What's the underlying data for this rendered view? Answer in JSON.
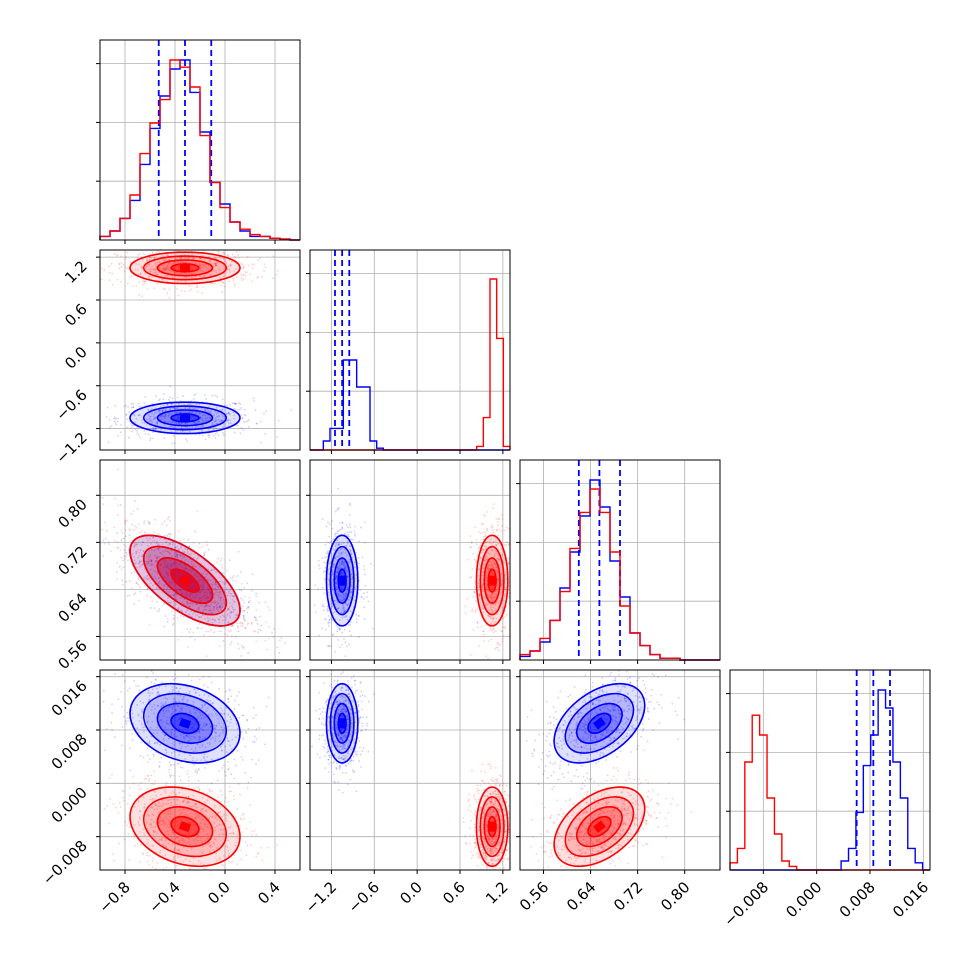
{
  "chart_data": {
    "type": "corner",
    "params": [
      {
        "range": [
          -1.0,
          0.6
        ],
        "ticks": [
          "-0.8",
          "-0.4",
          "0.0",
          "0.4"
        ],
        "tick_values": [
          -0.8,
          -0.4,
          0.0,
          0.4
        ]
      },
      {
        "range": [
          -1.5,
          1.3
        ],
        "ticks": [
          "-1.2",
          "-0.6",
          "0.0",
          "0.6",
          "1.2"
        ],
        "tick_values": [
          -1.2,
          -0.6,
          0.0,
          0.6,
          1.2
        ]
      },
      {
        "range": [
          0.52,
          0.86
        ],
        "ticks": [
          "0.56",
          "0.64",
          "0.72",
          "0.80"
        ],
        "tick_values": [
          0.56,
          0.64,
          0.72,
          0.8
        ]
      },
      {
        "range": [
          -0.013,
          0.017
        ],
        "ticks": [
          "-0.008",
          "0.000",
          "0.008",
          "0.016"
        ],
        "tick_values": [
          -0.008,
          0.0,
          0.008,
          0.016
        ]
      }
    ],
    "series": [
      {
        "color": "#0000ff",
        "mean": [
          -0.32,
          -1.05,
          0.655,
          0.009
        ],
        "std": [
          0.2,
          0.1,
          0.035,
          0.0027
        ],
        "quantiles": [
          [
            -0.53,
            -0.32,
            -0.11
          ],
          [
            -1.15,
            -1.05,
            -0.95
          ],
          [
            0.62,
            0.655,
            0.69
          ],
          [
            0.006,
            0.0085,
            0.011
          ]
        ],
        "hist": [
          [
            0.02,
            0.05,
            0.12,
            0.22,
            0.42,
            0.62,
            0.8,
            0.95,
            1.0,
            0.82,
            0.6,
            0.32,
            0.2,
            0.1,
            0.05,
            0.02,
            0.02,
            0.01,
            0.005,
            0.0
          ],
          [
            0.0,
            0.0,
            0.05,
            0.12,
            0.12,
            0.5,
            0.5,
            0.35,
            0.35,
            0.05,
            0.01,
            0.0,
            0.0,
            0.0,
            0.0,
            0.0,
            0.0,
            0.0,
            0.0,
            0.0,
            0.0,
            0.0,
            0.0,
            0.0,
            0.0,
            0.0,
            0.0,
            0.0,
            0.0,
            0.0
          ],
          [
            0.02,
            0.05,
            0.1,
            0.22,
            0.4,
            0.6,
            0.8,
            1.0,
            0.85,
            0.55,
            0.35,
            0.15,
            0.08,
            0.03,
            0.01,
            0.01,
            0.0,
            0.0,
            0.0,
            0.0
          ],
          [
            0.0,
            0.0,
            0.0,
            0.0,
            0.0,
            0.0,
            0.0,
            0.0,
            0.0,
            0.0,
            0.0,
            0.0,
            0.0,
            0.0,
            0.0,
            0.05,
            0.12,
            0.32,
            0.58,
            0.75,
            1.0,
            0.9,
            0.6,
            0.4,
            0.12,
            0.04,
            0.0
          ]
        ]
      },
      {
        "color": "#ff0000",
        "mean": [
          -0.32,
          1.05,
          0.655,
          -0.0065
        ],
        "std": [
          0.2,
          0.1,
          0.035,
          0.0027
        ],
        "quantiles": null,
        "hist": [
          [
            0.02,
            0.05,
            0.12,
            0.25,
            0.48,
            0.65,
            0.78,
            1.0,
            0.96,
            0.85,
            0.58,
            0.32,
            0.18,
            0.1,
            0.06,
            0.03,
            0.02,
            0.01,
            0.005,
            0.0
          ],
          [
            0.0,
            0.0,
            0.0,
            0.0,
            0.0,
            0.0,
            0.0,
            0.0,
            0.0,
            0.0,
            0.0,
            0.0,
            0.0,
            0.0,
            0.0,
            0.0,
            0.0,
            0.0,
            0.0,
            0.0,
            0.0,
            0.0,
            0.0,
            0.0,
            0.0,
            0.02,
            0.18,
            0.95,
            0.62,
            0.02
          ],
          [
            0.03,
            0.05,
            0.12,
            0.22,
            0.38,
            0.62,
            0.82,
            0.95,
            0.82,
            0.6,
            0.3,
            0.15,
            0.08,
            0.03,
            0.01,
            0.01,
            0.0,
            0.0,
            0.0,
            0.0
          ],
          [
            0.04,
            0.12,
            0.6,
            0.86,
            0.75,
            0.4,
            0.2,
            0.05,
            0.02,
            0.0,
            0.0,
            0.0,
            0.0,
            0.0,
            0.0,
            0.0,
            0.0,
            0.0,
            0.0,
            0.0,
            0.0,
            0.0,
            0.0,
            0.0,
            0.0,
            0.0,
            0.0
          ]
        ]
      }
    ],
    "correlations": [
      [
        0,
        0,
        0,
        0
      ],
      [
        0,
        0,
        0,
        0
      ],
      [
        -0.65,
        0,
        0,
        0
      ],
      [
        -0.25,
        0,
        0.45,
        0
      ]
    ],
    "contour_levels_sigma": [
      0.5,
      1.0,
      1.5,
      2.0
    ],
    "grid": true
  }
}
